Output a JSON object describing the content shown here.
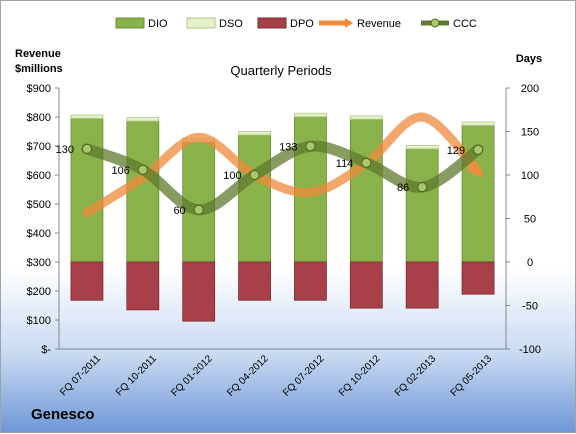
{
  "chart_data": {
    "type": "bar",
    "title": "Quarterly Periods",
    "company": "Genesco",
    "left_axis_label": [
      "Revenue",
      "$millions"
    ],
    "right_axis_label": "Days",
    "left_ticks": [
      "$-",
      "$100",
      "$200",
      "$300",
      "$400",
      "$500",
      "$600",
      "$700",
      "$800",
      "$900"
    ],
    "right_ticks": [
      "-100",
      "-50",
      "0",
      "50",
      "100",
      "150",
      "200"
    ],
    "ylim_left": [
      0,
      900
    ],
    "ylim_right": [
      -100,
      200
    ],
    "categories": [
      "FQ 07-2011",
      "FQ 10-2011",
      "FQ 01-2012",
      "FQ 04-2012",
      "FQ 07-2012",
      "FQ 10-2012",
      "FQ 02-2013",
      "FQ 05-2013"
    ],
    "legend": [
      "DIO",
      "DSO",
      "DPO",
      "Revenue",
      "CCC"
    ],
    "colors": {
      "DIO": "#8ab24a",
      "DSO": "#e4f0c8",
      "DPO": "#a8404a",
      "Revenue": "#f08a3c",
      "CCC": "#5f7a2e"
    },
    "series": [
      {
        "name": "DIO",
        "axis": "right",
        "values": [
          165,
          162,
          138,
          146,
          167,
          164,
          130,
          157
        ]
      },
      {
        "name": "DSO",
        "axis": "right",
        "values": [
          4,
          4,
          4,
          4,
          4,
          4,
          4,
          4
        ]
      },
      {
        "name": "DPO",
        "axis": "right",
        "values": [
          -44,
          -55,
          -68,
          -44,
          -44,
          -53,
          -53,
          -37
        ]
      },
      {
        "name": "Revenue",
        "axis": "left",
        "values": [
          470,
          590,
          730,
          600,
          540,
          640,
          800,
          610
        ]
      },
      {
        "name": "CCC",
        "axis": "right",
        "values": [
          130,
          106,
          60,
          100,
          133,
          114,
          86,
          129
        ]
      }
    ],
    "ccc_labels": [
      "130",
      "106",
      "60",
      "100",
      "133",
      "114",
      "86",
      "129"
    ]
  }
}
